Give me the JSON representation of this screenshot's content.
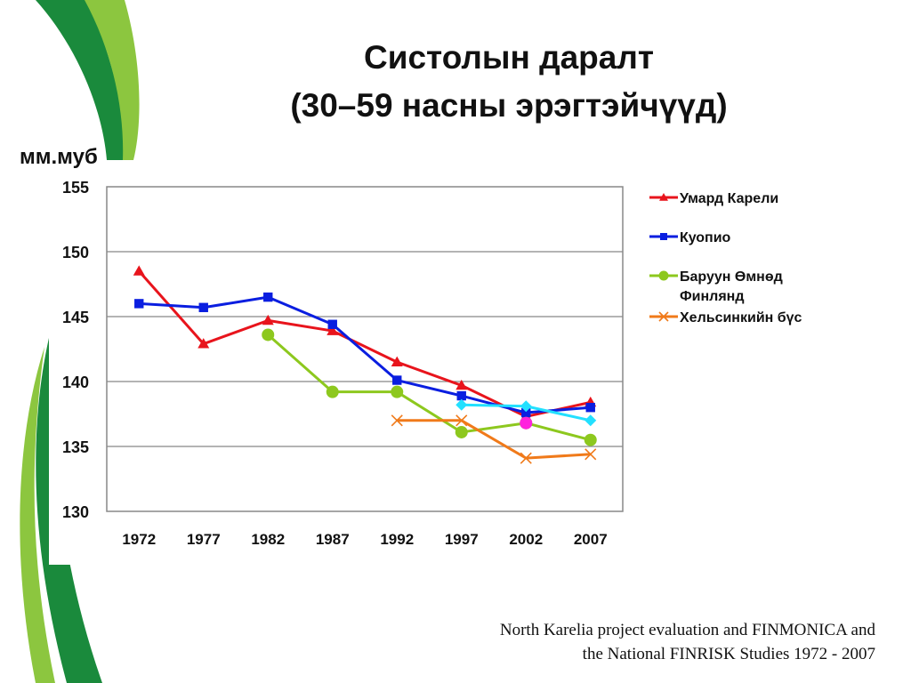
{
  "slide": {
    "title_line1": "Систолын даралт",
    "title_line2": "(30–59 насны эрэгтэйчүүд)",
    "unit_label": "мм.муб",
    "source_line1": "North Karelia project evaluation and FINMONICA and",
    "source_line2": "the National FINRISK Studies 1972 - 2007",
    "colors": {
      "dark_green": "#1a8a3c",
      "light_green": "#8cc63f"
    }
  },
  "chart_data": {
    "type": "line",
    "title": "",
    "xlabel": "",
    "ylabel": "мм.муб",
    "categories": [
      "1972",
      "1977",
      "1982",
      "1987",
      "1992",
      "1997",
      "2002",
      "2007"
    ],
    "ylim": [
      130,
      155
    ],
    "yticks": [
      130,
      135,
      140,
      145,
      150,
      155
    ],
    "grid": "horizontal",
    "legend_position": "right",
    "series": [
      {
        "name": "Умард Карели",
        "color": "#e8141c",
        "marker": "triangle",
        "values": [
          148.5,
          142.9,
          144.7,
          143.9,
          141.5,
          139.7,
          137.3,
          138.4
        ]
      },
      {
        "name": "Куопио",
        "color": "#0a1ee0",
        "marker": "square",
        "values": [
          146.0,
          145.7,
          146.5,
          144.4,
          140.1,
          138.9,
          137.6,
          138.0
        ]
      },
      {
        "name": "Баруун Өмнөд Финлянд",
        "legend_lines": [
          "Баруун Өмнөд",
          "Финлянд"
        ],
        "color": "#8dc81e",
        "marker": "circle",
        "values": [
          null,
          null,
          143.6,
          139.2,
          139.2,
          136.1,
          136.8,
          135.5
        ]
      },
      {
        "name": "Хельсинкийн бүс",
        "color": "#f07a1a",
        "marker": "x",
        "values": [
          null,
          null,
          null,
          null,
          137.0,
          137.0,
          134.1,
          134.4
        ]
      }
    ],
    "extra_series": [
      {
        "color": "#22e0ff",
        "marker": "diamond",
        "in_legend": false,
        "values": [
          null,
          null,
          null,
          null,
          null,
          138.2,
          138.1,
          137.0
        ]
      },
      {
        "color": "#ff22dd",
        "marker": "circle",
        "in_legend": false,
        "values": [
          null,
          null,
          null,
          null,
          null,
          null,
          136.8,
          null
        ]
      }
    ]
  }
}
